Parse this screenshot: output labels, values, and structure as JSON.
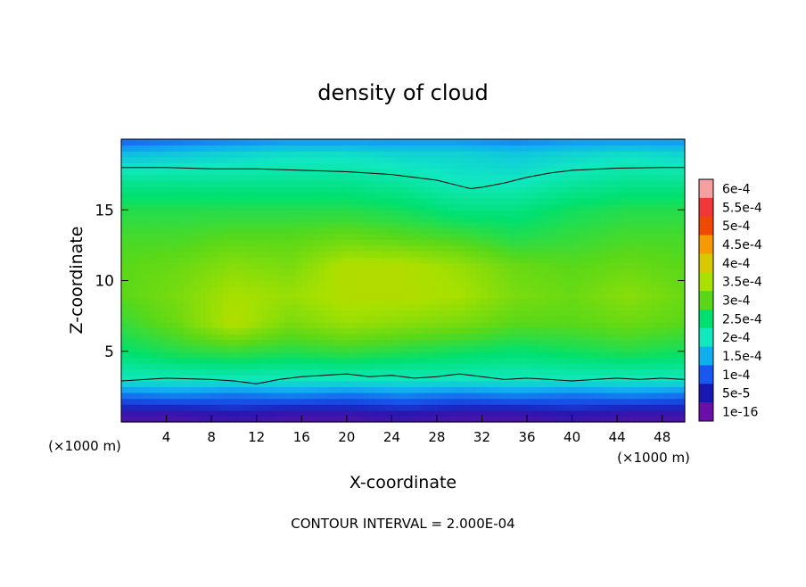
{
  "chart_data": {
    "type": "heatmap",
    "title": "density of cloud",
    "xlabel": "X-coordinate",
    "ylabel": "Z-coordinate",
    "x_unit": "(×1000 m)",
    "x_ticks": [
      4,
      8,
      12,
      16,
      20,
      24,
      28,
      32,
      36,
      40,
      44,
      48
    ],
    "y_ticks": [
      5,
      10,
      15
    ],
    "xlim": [
      0,
      50
    ],
    "ylim": [
      0,
      20
    ],
    "footer": "CONTOUR INTERVAL = 2.000E-04",
    "colorbar": {
      "labels": [
        "6e-4",
        "5.5e-4",
        "5e-4",
        "4.5e-4",
        "4e-4",
        "3.5e-4",
        "3e-4",
        "2.5e-4",
        "2e-4",
        "1.5e-4",
        "1e-4",
        "5e-5",
        "1e-16"
      ],
      "colors": [
        "#f5a0a0",
        "#f03838",
        "#f04a00",
        "#f59a00",
        "#d8c800",
        "#a8e000",
        "#5ad818",
        "#00e070",
        "#10e8c0",
        "#10b0f0",
        "#1858f0",
        "#1818b0",
        "#6a10a8"
      ]
    },
    "field": {
      "x": [
        0,
        5,
        10,
        15,
        20,
        25,
        30,
        35,
        40,
        45,
        50
      ],
      "z": [
        0.5,
        1,
        2,
        3,
        5,
        7,
        9,
        11,
        13,
        15,
        17,
        19,
        20
      ],
      "values_e4": [
        [
          0.2,
          0.2,
          0.3,
          0.2,
          0.2,
          0.3,
          0.2,
          0.2,
          0.3,
          0.2,
          0.2
        ],
        [
          0.6,
          0.6,
          0.7,
          0.6,
          0.6,
          0.7,
          0.6,
          0.6,
          0.7,
          0.6,
          0.6
        ],
        [
          1.2,
          1.3,
          1.2,
          1.3,
          1.2,
          1.3,
          1.2,
          1.3,
          1.2,
          1.3,
          1.2
        ],
        [
          2.0,
          2.0,
          2.0,
          2.0,
          2.0,
          2.0,
          2.0,
          2.0,
          2.0,
          2.0,
          2.0
        ],
        [
          2.5,
          2.7,
          2.8,
          2.7,
          2.8,
          2.7,
          2.6,
          2.5,
          2.6,
          2.7,
          2.6
        ],
        [
          2.8,
          3.1,
          3.6,
          3.2,
          3.4,
          3.3,
          3.2,
          3.0,
          3.0,
          3.1,
          3.0
        ],
        [
          3.0,
          3.2,
          3.5,
          3.4,
          3.6,
          3.6,
          3.5,
          3.2,
          3.1,
          3.3,
          3.1
        ],
        [
          3.0,
          3.1,
          3.3,
          3.2,
          3.6,
          3.6,
          3.4,
          3.1,
          3.0,
          3.1,
          3.0
        ],
        [
          2.9,
          2.9,
          3.0,
          3.0,
          3.1,
          3.0,
          2.9,
          2.7,
          2.8,
          2.9,
          2.9
        ],
        [
          2.7,
          2.7,
          2.7,
          2.7,
          2.7,
          2.6,
          2.4,
          2.4,
          2.6,
          2.7,
          2.7
        ],
        [
          2.3,
          2.3,
          2.3,
          2.3,
          2.3,
          2.2,
          2.0,
          2.0,
          2.2,
          2.3,
          2.3
        ],
        [
          1.6,
          1.7,
          1.8,
          1.9,
          1.9,
          1.8,
          1.8,
          1.7,
          1.8,
          1.9,
          1.8
        ],
        [
          1.0,
          1.1,
          1.2,
          1.3,
          1.3,
          1.3,
          1.3,
          1.2,
          1.3,
          1.3,
          1.3
        ]
      ]
    },
    "contours": {
      "upper": {
        "x": [
          0,
          4,
          8,
          12,
          16,
          20,
          24,
          28,
          30,
          31,
          32,
          34,
          36,
          38,
          40,
          44,
          48,
          50
        ],
        "z": [
          18.0,
          18.0,
          17.9,
          17.9,
          17.8,
          17.7,
          17.5,
          17.1,
          16.7,
          16.5,
          16.6,
          16.9,
          17.3,
          17.6,
          17.8,
          17.95,
          18.0,
          18.0
        ]
      },
      "lower": {
        "x": [
          0,
          4,
          8,
          10,
          12,
          14,
          16,
          18,
          20,
          22,
          24,
          26,
          28,
          30,
          32,
          34,
          36,
          38,
          40,
          42,
          44,
          46,
          48,
          50
        ],
        "z": [
          2.9,
          3.1,
          3.0,
          2.9,
          2.7,
          3.0,
          3.2,
          3.3,
          3.4,
          3.2,
          3.3,
          3.1,
          3.2,
          3.4,
          3.2,
          3.0,
          3.1,
          3.0,
          2.9,
          3.0,
          3.1,
          3.0,
          3.1,
          3.0
        ]
      }
    }
  }
}
